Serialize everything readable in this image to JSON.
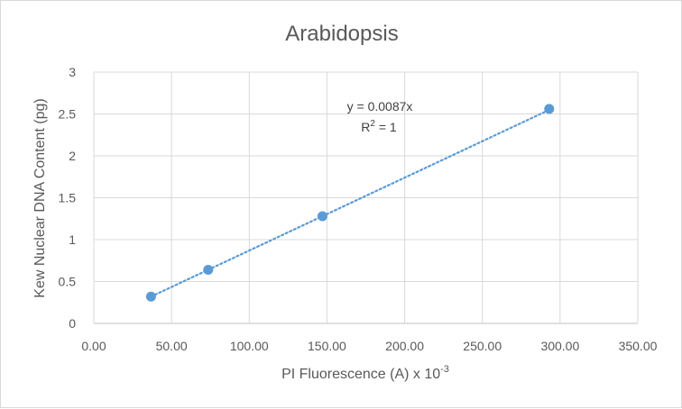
{
  "chart_data": {
    "type": "scatter",
    "title": "Arabidopsis",
    "xlabel": "PI Fluorescence (A) x 10",
    "xlabel_superscript": "-3",
    "ylabel": "Kew Nuclear DNA Content (pg)",
    "xlim": [
      0,
      350
    ],
    "ylim": [
      0,
      3
    ],
    "x_ticks": [
      "0.00",
      "50.00",
      "100.00",
      "150.00",
      "200.00",
      "250.00",
      "300.00",
      "350.00"
    ],
    "y_ticks": [
      "0",
      "0.5",
      "1",
      "1.5",
      "2",
      "2.5",
      "3"
    ],
    "grid": true,
    "series": [
      {
        "x": [
          36.8,
          73.6,
          147.1,
          293.0
        ],
        "y": [
          0.32,
          0.64,
          1.28,
          2.56
        ],
        "color": "#5b9bd5"
      }
    ],
    "trendline": {
      "type": "linear",
      "slope": 0.0087,
      "intercept": 0,
      "x_range": [
        36.8,
        293.0
      ],
      "style": "dotted",
      "color": "#5b9bd5",
      "equation": "y = 0.0087x",
      "r_squared_label": "R",
      "r_squared_sup": "2",
      "r_squared_value": " = 1"
    }
  }
}
